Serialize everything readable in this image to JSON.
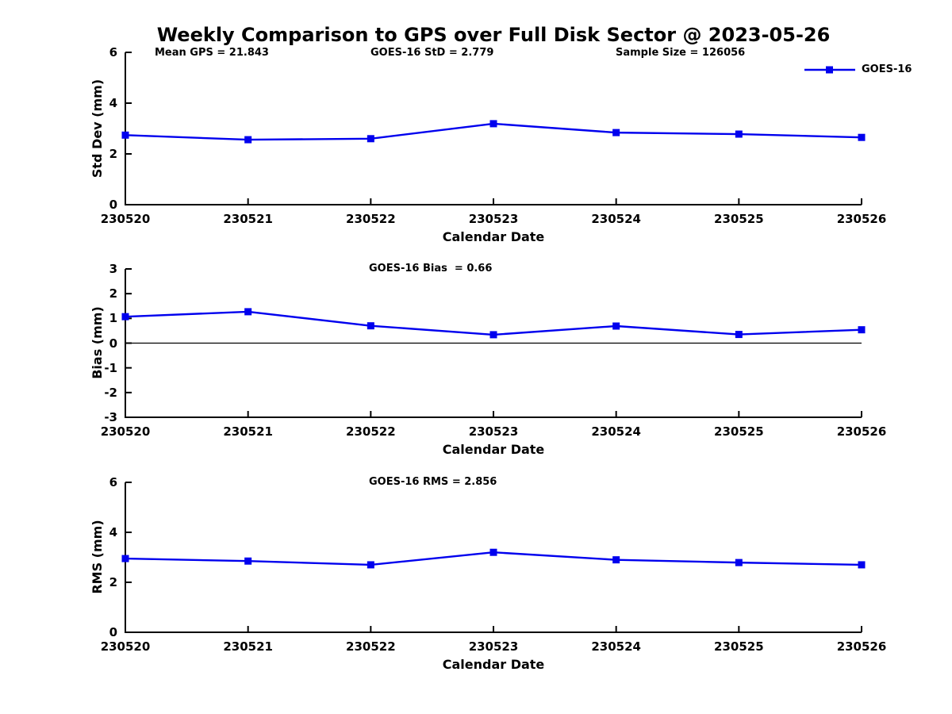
{
  "title": "Weekly Comparison to GPS over Full Disk Sector @ 2023-05-26",
  "legend": {
    "label": "GOES-16",
    "color": "#0000EE",
    "marker": "square"
  },
  "colors": {
    "line": "#0000EE",
    "axis": "#000000",
    "background": "#FFFFFF"
  },
  "chart_data": [
    {
      "type": "line",
      "name": "std-dev-vs-date",
      "annotations": [
        "Mean GPS = 21.843",
        "GOES-16 StD = 2.779",
        "Sample Size = 126056"
      ],
      "categories": [
        "230520",
        "230521",
        "230522",
        "230523",
        "230524",
        "230525",
        "230526"
      ],
      "series": [
        {
          "name": "GOES-16",
          "color": "#0000EE",
          "marker": "square",
          "values": [
            2.74,
            2.56,
            2.6,
            3.19,
            2.84,
            2.78,
            2.65
          ]
        }
      ],
      "xlabel": "Calendar Date",
      "ylabel": "Std Dev (mm)",
      "ylim": [
        0,
        6
      ],
      "yticks": [
        0,
        2,
        4,
        6
      ],
      "grid": false,
      "zero_line": false,
      "legend_position": "top-right-outside"
    },
    {
      "type": "line",
      "name": "bias-vs-date",
      "annotations": [
        "GOES-16 Bias  = 0.66"
      ],
      "categories": [
        "230520",
        "230521",
        "230522",
        "230523",
        "230524",
        "230525",
        "230526"
      ],
      "series": [
        {
          "name": "GOES-16",
          "color": "#0000EE",
          "marker": "square",
          "values": [
            1.07,
            1.27,
            0.7,
            0.34,
            0.69,
            0.35,
            0.54
          ]
        }
      ],
      "xlabel": "Calendar Date",
      "ylabel": "Bias (mm)",
      "ylim": [
        -3,
        3
      ],
      "yticks": [
        -3,
        -2,
        -1,
        0,
        1,
        2,
        3
      ],
      "grid": false,
      "zero_line": true,
      "legend_position": "none"
    },
    {
      "type": "line",
      "name": "rms-vs-date",
      "annotations": [
        "GOES-16 RMS = 2.856"
      ],
      "categories": [
        "230520",
        "230521",
        "230522",
        "230523",
        "230524",
        "230525",
        "230526"
      ],
      "series": [
        {
          "name": "GOES-16",
          "color": "#0000EE",
          "marker": "square",
          "values": [
            2.95,
            2.85,
            2.7,
            3.2,
            2.9,
            2.79,
            2.7
          ]
        }
      ],
      "xlabel": "Calendar Date",
      "ylabel": "RMS (mm)",
      "ylim": [
        0,
        6
      ],
      "yticks": [
        0,
        2,
        4,
        6
      ],
      "grid": false,
      "zero_line": false,
      "legend_position": "none"
    }
  ]
}
